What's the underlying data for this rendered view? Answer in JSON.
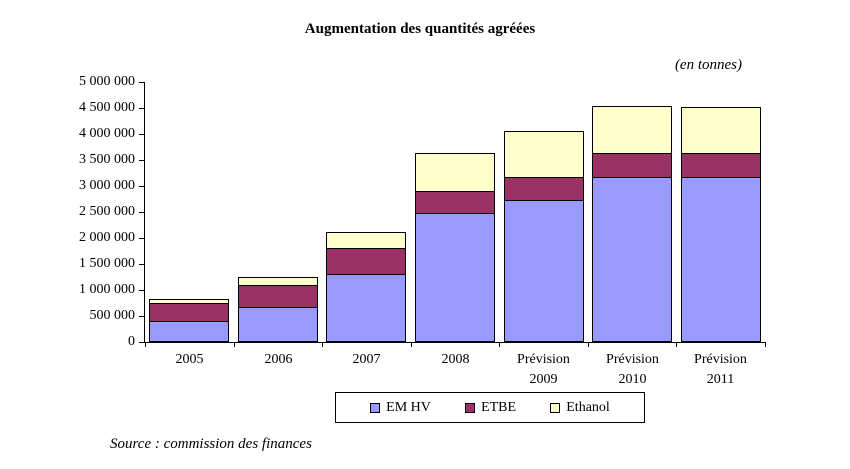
{
  "title": "Augmentation des quantités agréées",
  "unit_note": "(en tonnes)",
  "source": "Source : commission des finances",
  "colors": {
    "em_hv": "#9999FF",
    "etbe": "#993366",
    "ethanol": "#FFFFCC",
    "border": "#000000"
  },
  "chart_data": {
    "type": "bar",
    "stacked": true,
    "title": "Augmentation des quantités agréées",
    "unit": "(en tonnes)",
    "xlabel": "",
    "ylabel": "",
    "ylim": [
      0,
      5000000
    ],
    "ytick_step": 500000,
    "ytick_labels": [
      "0",
      "500 000",
      "1 000 000",
      "1 500 000",
      "2 000 000",
      "2 500 000",
      "3 000 000",
      "3 500 000",
      "4 000 000",
      "4 500 000",
      "5 000 000"
    ],
    "grid": false,
    "legend_position": "bottom",
    "categories": [
      "2005",
      "2006",
      "2007",
      "2008",
      "Prévision\n2009",
      "Prévision\n2010",
      "Prévision\n2011"
    ],
    "series": [
      {
        "name": "EM HV",
        "color": "#9999FF",
        "values": [
          400000,
          670000,
          1310000,
          2480000,
          2730000,
          3180000,
          3180000
        ]
      },
      {
        "name": "ETBE",
        "color": "#993366",
        "values": [
          350000,
          430000,
          490000,
          430000,
          440000,
          460000,
          460000
        ]
      },
      {
        "name": "Ethanol",
        "color": "#FFFFCC",
        "values": [
          80000,
          150000,
          320000,
          730000,
          880000,
          900000,
          870000
        ]
      }
    ]
  }
}
